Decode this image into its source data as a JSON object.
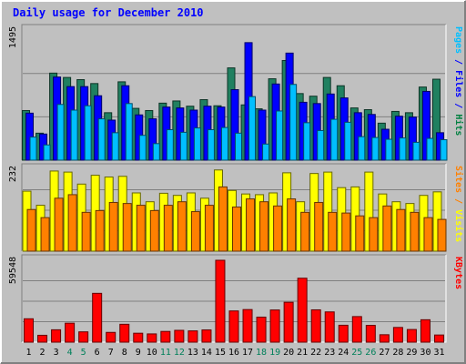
{
  "chart_data": {
    "type": "bar",
    "title": "Daily usage for December 2010",
    "x": [
      "1",
      "2",
      "3",
      "4",
      "5",
      "6",
      "7",
      "8",
      "9",
      "10",
      "11",
      "12",
      "13",
      "14",
      "15",
      "16",
      "17",
      "18",
      "19",
      "20",
      "21",
      "22",
      "23",
      "24",
      "25",
      "26",
      "27",
      "28",
      "29",
      "30",
      "31"
    ],
    "weekend_days": [
      "4",
      "5",
      "11",
      "12",
      "18",
      "19",
      "25",
      "26"
    ],
    "panels": [
      {
        "name": "requests",
        "ymax_label": "1495",
        "ymax": 1495,
        "right_labels": [
          {
            "text": "Pages",
            "color": "#00bfff"
          },
          {
            "text": " / ",
            "color": "#0000ff"
          },
          {
            "text": "Files",
            "color": "#0000ff"
          },
          {
            "text": " / ",
            "color": "#0000ff"
          },
          {
            "text": "Hits",
            "color": "#008040"
          }
        ],
        "series": [
          {
            "name": "Hits",
            "color": "#208060",
            "values": [
              570,
              310,
              1000,
              950,
              925,
              880,
              545,
              900,
              595,
              570,
              655,
              680,
              620,
              695,
              625,
              1060,
              635,
              590,
              935,
              1145,
              765,
              735,
              950,
              855,
              600,
              580,
              425,
              560,
              545,
              840,
              930
            ]
          },
          {
            "name": "Files",
            "color": "#0000ff",
            "values": [
              540,
              300,
              955,
              845,
              845,
              740,
              460,
              855,
              520,
              475,
              610,
              600,
              575,
              620,
              610,
              810,
              1350,
              575,
              875,
              1230,
              665,
              650,
              760,
              715,
              545,
              525,
              355,
              505,
              495,
              790,
              315
            ]
          },
          {
            "name": "Pages",
            "color": "#00bfff",
            "values": [
              265,
              175,
              640,
              575,
              625,
              475,
              315,
              650,
              285,
              190,
              350,
              320,
              370,
              350,
              375,
              310,
              730,
              185,
              565,
              870,
              430,
              340,
              470,
              435,
              270,
              260,
              240,
              255,
              205,
              250,
              235
            ]
          }
        ]
      },
      {
        "name": "visits",
        "ymax_label": "232",
        "ymax": 232,
        "right_labels": [
          {
            "text": "Sites",
            "color": "#ff8000"
          },
          {
            "text": " / ",
            "color": "#ff8000"
          },
          {
            "text": "Visits",
            "color": "#ffff00"
          }
        ],
        "series": [
          {
            "name": "Visits",
            "color": "#ffff00",
            "values": [
              170,
              130,
              227,
              224,
              190,
              215,
              210,
              212,
              165,
              140,
              164,
              158,
              165,
              150,
              230,
              172,
              162,
              160,
              165,
              222,
              140,
              220,
              224,
              180,
              182,
              224,
              162,
              140,
              135,
              158,
              168
            ]
          },
          {
            "name": "Sites",
            "color": "#ff8000",
            "values": [
              118,
              95,
              150,
              160,
              110,
              115,
              138,
              135,
              130,
              115,
              130,
              140,
              112,
              130,
              182,
              125,
              148,
              140,
              128,
              148,
              110,
              138,
              110,
              108,
              100,
              95,
              128,
              118,
              110,
              95,
              90
            ]
          }
        ]
      },
      {
        "name": "kbytes",
        "ymax_label": "59548",
        "ymax": 59548,
        "right_labels": [
          {
            "text": "KBytes",
            "color": "#ff0000"
          }
        ],
        "series": [
          {
            "name": "KBytes",
            "color": "#ff0000",
            "values": [
              17000,
              5000,
              9000,
              13800,
              7500,
              35500,
              7100,
              13000,
              6500,
              6000,
              7800,
              8600,
              8200,
              8900,
              59548,
              22700,
              23700,
              18200,
              23400,
              29000,
              46500,
              23500,
              22000,
              12300,
              18600,
              12200,
              5400,
              10700,
              9200,
              16300,
              5200
            ]
          }
        ]
      }
    ],
    "grid": true
  }
}
